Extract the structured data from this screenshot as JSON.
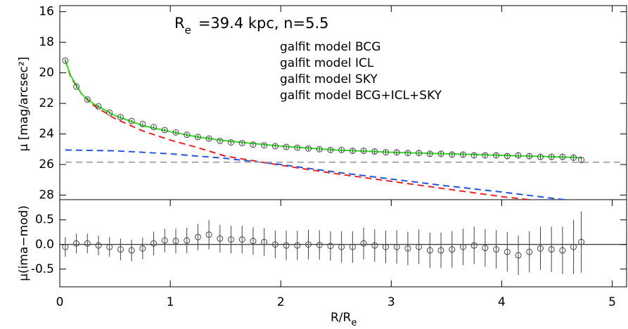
{
  "chart_data": [
    {
      "type": "line",
      "annotation": [
        "R",
        "e",
        "=39.4 kpc, n=5.5"
      ],
      "y_label": "μ [mag/arcsec²]",
      "xlim": [
        0,
        5.13
      ],
      "ylim": [
        28.3,
        15.6
      ],
      "yticks": [
        16,
        18,
        20,
        22,
        24,
        26,
        28
      ],
      "points": {
        "color": "#444444",
        "x": [
          0.05,
          0.15,
          0.25,
          0.35,
          0.45,
          0.55,
          0.65,
          0.75,
          0.85,
          0.95,
          1.05,
          1.15,
          1.25,
          1.35,
          1.45,
          1.55,
          1.65,
          1.75,
          1.85,
          1.95,
          2.05,
          2.15,
          2.25,
          2.35,
          2.45,
          2.55,
          2.65,
          2.75,
          2.85,
          2.95,
          3.05,
          3.15,
          3.25,
          3.35,
          3.45,
          3.55,
          3.65,
          3.75,
          3.85,
          3.95,
          4.05,
          4.15,
          4.25,
          4.35,
          4.45,
          4.55,
          4.65,
          4.72
        ],
        "values": [
          19.2,
          20.9,
          21.75,
          22.2,
          22.6,
          22.9,
          23.15,
          23.35,
          23.55,
          23.75,
          23.9,
          24.05,
          24.2,
          24.3,
          24.45,
          24.55,
          24.6,
          24.7,
          24.75,
          24.8,
          24.85,
          24.9,
          24.95,
          25.0,
          25.05,
          25.05,
          25.1,
          25.1,
          25.15,
          25.2,
          25.2,
          25.25,
          25.25,
          25.3,
          25.3,
          25.35,
          25.35,
          25.4,
          25.4,
          25.4,
          25.45,
          25.4,
          25.45,
          25.5,
          25.5,
          25.5,
          25.55,
          25.7
        ],
        "errors": [
          0.1,
          0.1,
          0.1,
          0.1,
          0.1,
          0.1,
          0.1,
          0.1,
          0.1,
          0.1,
          0.12,
          0.12,
          0.12,
          0.12,
          0.12,
          0.12,
          0.12,
          0.12,
          0.12,
          0.12,
          0.14,
          0.14,
          0.14,
          0.14,
          0.14,
          0.14,
          0.15,
          0.15,
          0.15,
          0.15,
          0.16,
          0.16,
          0.16,
          0.17,
          0.17,
          0.17,
          0.18,
          0.18,
          0.18,
          0.19,
          0.19,
          0.2,
          0.2,
          0.2,
          0.21,
          0.21,
          0.22,
          0.22
        ]
      },
      "series": [
        {
          "name": "galfit model BCG",
          "color": "#ee2222",
          "dashed": true,
          "x": [
            0.05,
            0.1,
            0.2,
            0.3,
            0.5,
            0.75,
            1,
            1.25,
            1.5,
            2,
            2.5,
            3,
            3.5,
            4,
            4.5,
            5.1
          ],
          "values": [
            19.2,
            20.3,
            21.4,
            22.1,
            23.0,
            23.8,
            24.4,
            24.9,
            25.45,
            26.05,
            26.6,
            27.1,
            27.6,
            28.1,
            28.5,
            28.9
          ]
        },
        {
          "name": "galfit model ICL",
          "color": "#2255dd",
          "dashed": true,
          "x": [
            0.05,
            0.5,
            1,
            1.5,
            2,
            2.5,
            3,
            3.5,
            4,
            4.5,
            5.1
          ],
          "values": [
            25.05,
            25.1,
            25.3,
            25.6,
            26.0,
            26.5,
            26.95,
            27.4,
            27.8,
            28.25,
            28.7
          ]
        },
        {
          "name": "galfit model SKY",
          "color": "#aaaaaa",
          "dashed": true,
          "x": [
            0.05,
            5.1
          ],
          "values": [
            25.85,
            25.85
          ]
        },
        {
          "name": "galfit model BCG+ICL+SKY",
          "color": "#33dd22",
          "dashed": false,
          "x": [
            0.05,
            0.1,
            0.2,
            0.3,
            0.5,
            0.75,
            1,
            1.25,
            1.5,
            2,
            2.5,
            3,
            3.5,
            4,
            4.5,
            4.72
          ],
          "values": [
            19.2,
            20.2,
            21.4,
            22.0,
            22.8,
            23.45,
            23.85,
            24.2,
            24.45,
            24.8,
            25.05,
            25.2,
            25.3,
            25.4,
            25.5,
            25.55
          ]
        }
      ]
    },
    {
      "type": "errorbar",
      "y_label": "μ(ima−mod)",
      "x_label": [
        "R/R",
        "e"
      ],
      "xlim": [
        0,
        5.13
      ],
      "ylim": [
        -0.86,
        0.91
      ],
      "xticks": [
        0,
        1,
        2,
        3,
        4,
        5
      ],
      "yticks": [
        0.5,
        {
          "value": 0,
          "label": "0.0"
        },
        -0.5
      ],
      "hline": 0,
      "points": {
        "color": "#444444",
        "x": [
          0.05,
          0.15,
          0.25,
          0.35,
          0.45,
          0.55,
          0.65,
          0.75,
          0.85,
          0.95,
          1.05,
          1.15,
          1.25,
          1.35,
          1.45,
          1.55,
          1.65,
          1.75,
          1.85,
          1.95,
          2.05,
          2.15,
          2.25,
          2.35,
          2.45,
          2.55,
          2.65,
          2.75,
          2.85,
          2.95,
          3.05,
          3.15,
          3.25,
          3.35,
          3.45,
          3.55,
          3.65,
          3.75,
          3.85,
          3.95,
          4.05,
          4.15,
          4.25,
          4.35,
          4.45,
          4.55,
          4.65,
          4.72
        ],
        "values": [
          -0.05,
          0.02,
          0.02,
          -0.02,
          -0.05,
          -0.1,
          -0.12,
          -0.08,
          0.02,
          0.08,
          0.07,
          0.08,
          0.15,
          0.2,
          0.12,
          0.1,
          0.1,
          0.07,
          0.05,
          0.0,
          -0.02,
          -0.02,
          0.0,
          -0.01,
          -0.03,
          -0.05,
          -0.05,
          0.02,
          -0.02,
          -0.05,
          -0.05,
          -0.08,
          -0.05,
          -0.12,
          -0.12,
          -0.1,
          -0.05,
          -0.02,
          -0.07,
          -0.1,
          -0.15,
          -0.22,
          -0.15,
          -0.08,
          -0.1,
          -0.12,
          -0.05,
          0.05
        ],
        "errors": [
          0.2,
          0.2,
          0.2,
          0.2,
          0.2,
          0.22,
          0.22,
          0.22,
          0.24,
          0.24,
          0.25,
          0.26,
          0.27,
          0.3,
          0.28,
          0.28,
          0.28,
          0.28,
          0.28,
          0.28,
          0.3,
          0.3,
          0.3,
          0.3,
          0.3,
          0.32,
          0.32,
          0.32,
          0.33,
          0.33,
          0.34,
          0.34,
          0.35,
          0.36,
          0.36,
          0.37,
          0.37,
          0.38,
          0.38,
          0.39,
          0.4,
          0.4,
          0.42,
          0.44,
          0.46,
          0.48,
          0.55,
          0.62
        ]
      }
    }
  ]
}
